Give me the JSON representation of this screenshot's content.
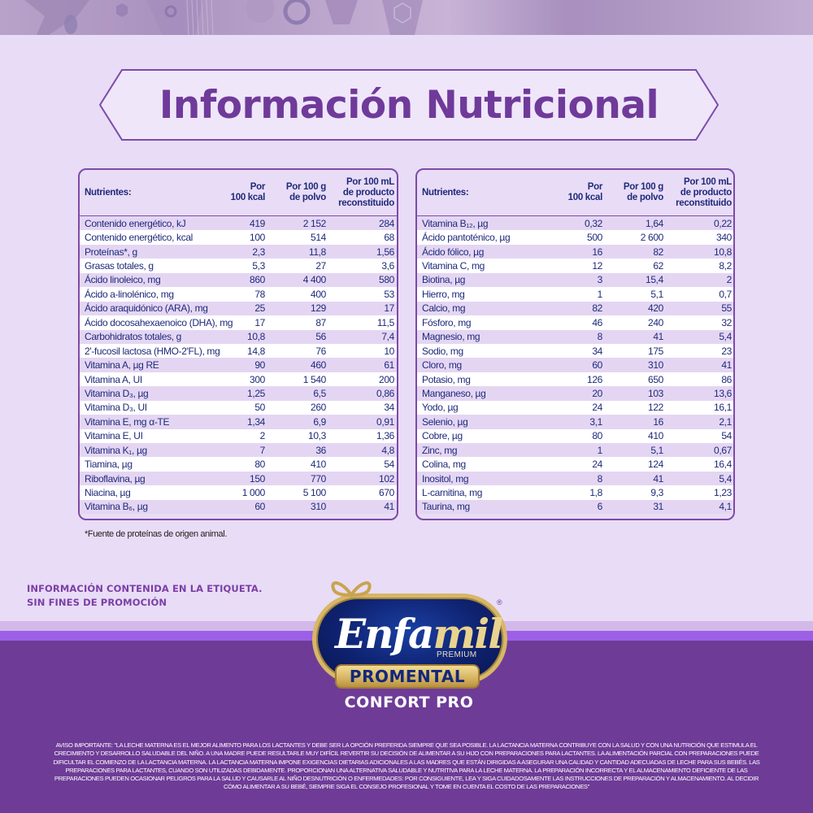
{
  "title": "Información Nutricional",
  "table_headers": {
    "nutrient": "Nutrientes:",
    "per_kcal_l1": "Por",
    "per_kcal_l2": "100 kcal",
    "per_powder_l1": "Por 100 g",
    "per_powder_l2": "de polvo",
    "per_ml_l1": "Por 100 mL",
    "per_ml_l2": "de producto",
    "per_ml_l3": "reconstituido"
  },
  "left_table": [
    {
      "name": "Contenido energético, kJ",
      "kcal": "419",
      "powder": "2 152",
      "ml": "284"
    },
    {
      "name": "Contenido energético, kcal",
      "kcal": "100",
      "powder": "514",
      "ml": "68"
    },
    {
      "name": "Proteínas*, g",
      "kcal": "2,3",
      "powder": "11,8",
      "ml": "1,56"
    },
    {
      "name": "Grasas totales, g",
      "kcal": "5,3",
      "powder": "27",
      "ml": "3,6"
    },
    {
      "name": "Ácido linoleico, mg",
      "kcal": "860",
      "powder": "4 400",
      "ml": "580"
    },
    {
      "name": "Ácido a-linolénico, mg",
      "kcal": "78",
      "powder": "400",
      "ml": "53"
    },
    {
      "name": "Ácido araquidónico (ARA), mg",
      "kcal": "25",
      "powder": "129",
      "ml": "17"
    },
    {
      "name": "Ácido docosahexaenoico (DHA), mg",
      "kcal": "17",
      "powder": "87",
      "ml": "11,5"
    },
    {
      "name": "Carbohidratos totales, g",
      "kcal": "10,8",
      "powder": "56",
      "ml": "7,4"
    },
    {
      "name": "2'-fucosil lactosa (HMO-2'FL), mg",
      "kcal": "14,8",
      "powder": "76",
      "ml": "10"
    },
    {
      "name": "Vitamina A, µg RE",
      "kcal": "90",
      "powder": "460",
      "ml": "61"
    },
    {
      "name": "Vitamina A, UI",
      "kcal": "300",
      "powder": "1 540",
      "ml": "200"
    },
    {
      "name": "Vitamina D₃, µg",
      "kcal": "1,25",
      "powder": "6,5",
      "ml": "0,86"
    },
    {
      "name": "Vitamina D₃, UI",
      "kcal": "50",
      "powder": "260",
      "ml": "34"
    },
    {
      "name": "Vitamina E, mg α-TE",
      "kcal": "1,34",
      "powder": "6,9",
      "ml": "0,91"
    },
    {
      "name": "Vitamina E, UI",
      "kcal": "2",
      "powder": "10,3",
      "ml": "1,36"
    },
    {
      "name": "Vitamina K₁, µg",
      "kcal": "7",
      "powder": "36",
      "ml": "4,8"
    },
    {
      "name": "Tiamina, µg",
      "kcal": "80",
      "powder": "410",
      "ml": "54"
    },
    {
      "name": "Riboflavina, µg",
      "kcal": "150",
      "powder": "770",
      "ml": "102"
    },
    {
      "name": "Niacina, µg",
      "kcal": "1 000",
      "powder": "5 100",
      "ml": "670"
    },
    {
      "name": "Vitamina B₆, µg",
      "kcal": "60",
      "powder": "310",
      "ml": "41"
    }
  ],
  "right_table": [
    {
      "name": "Vitamina B₁₂, µg",
      "kcal": "0,32",
      "powder": "1,64",
      "ml": "0,22"
    },
    {
      "name": "Ácido pantoténico, µg",
      "kcal": "500",
      "powder": "2 600",
      "ml": "340"
    },
    {
      "name": "Ácido fólico, µg",
      "kcal": "16",
      "powder": "82",
      "ml": "10,8"
    },
    {
      "name": "Vitamina C, mg",
      "kcal": "12",
      "powder": "62",
      "ml": "8,2"
    },
    {
      "name": "Biotina, µg",
      "kcal": "3",
      "powder": "15,4",
      "ml": "2"
    },
    {
      "name": "Hierro, mg",
      "kcal": "1",
      "powder": "5,1",
      "ml": "0,7"
    },
    {
      "name": "Calcio, mg",
      "kcal": "82",
      "powder": "420",
      "ml": "55"
    },
    {
      "name": "Fósforo, mg",
      "kcal": "46",
      "powder": "240",
      "ml": "32"
    },
    {
      "name": "Magnesio, mg",
      "kcal": "8",
      "powder": "41",
      "ml": "5,4"
    },
    {
      "name": "Sodio, mg",
      "kcal": "34",
      "powder": "175",
      "ml": "23"
    },
    {
      "name": "Cloro, mg",
      "kcal": "60",
      "powder": "310",
      "ml": "41"
    },
    {
      "name": "Potasio, mg",
      "kcal": "126",
      "powder": "650",
      "ml": "86"
    },
    {
      "name": "Manganeso, µg",
      "kcal": "20",
      "powder": "103",
      "ml": "13,6"
    },
    {
      "name": "Yodo, µg",
      "kcal": "24",
      "powder": "122",
      "ml": "16,1"
    },
    {
      "name": "Selenio, µg",
      "kcal": "3,1",
      "powder": "16",
      "ml": "2,1"
    },
    {
      "name": "Cobre, µg",
      "kcal": "80",
      "powder": "410",
      "ml": "54"
    },
    {
      "name": "Zinc, mg",
      "kcal": "1",
      "powder": "5,1",
      "ml": "0,67"
    },
    {
      "name": "Colina, mg",
      "kcal": "24",
      "powder": "124",
      "ml": "16,4"
    },
    {
      "name": "Inositol, mg",
      "kcal": "8",
      "powder": "41",
      "ml": "5,4"
    },
    {
      "name": "L-carnitina, mg",
      "kcal": "1,8",
      "powder": "9,3",
      "ml": "1,23"
    },
    {
      "name": "Taurina, mg",
      "kcal": "6",
      "powder": "31",
      "ml": "4,1"
    }
  ],
  "footnote": "*Fuente de proteínas de origen animal.",
  "promo_disclaimer": {
    "line1": "INFORMACIÓN CONTENIDA EN LA ETIQUETA.",
    "line2": "SIN FINES DE PROMOCIÓN"
  },
  "logo": {
    "brand_part1": "Enfa",
    "brand_part2": "mil",
    "registered": "®",
    "tier": "PREMIUM",
    "line": "PROMENTAL",
    "variant": "CONFORT PRO"
  },
  "legal_notice": "AVISO IMPORTANTE: \"LA LECHE MATERNA ES EL MEJOR ALIMENTO PARA LOS LACTANTES Y DEBE SER LA OPCIÓN PREFERIDA SIEMPRE QUE SEA POSIBLE. LA LACTANCIA MATERNA CONTRIBUYE CON LA SALUD Y CON UNA NUTRICIÓN QUE ESTIMULA EL CRECIMIENTO Y DESARROLLO SALUDABLE DEL NIÑO. A UNA MADRE PUEDE RESULTARLE MUY DIFÍCIL REVERTIR SU DECISIÓN DE ALIMENTAR A SU HIJO CON PREPARACIONES PARA LACTANTES. LA ALIMENTACIÓN PARCIAL CON PREPARACIONES PUEDE DIFICULTAR EL COMIENZO DE LA LACTANCIA MATERNA. LA LACTANCIA MATERNA IMPONE EXIGENCIAS DIETARIAS ADICIONALES A LAS MADRES QUE ESTÁN DIRIGIDAS A ASEGURAR UNA CALIDAD Y CANTIDAD ADECUADAS DE LECHE PARA SUS BEBÉS. LAS PREPARACIONES PARA LACTANTES, CUANDO SON UTILIZADAS DEBIDAMENTE. PROPORCIONAN UNA ALTERNATIVA SALUDABLE Y NUTRITIVA PARA LA LECHE MATERNA. LA PREPARACIÓN INCORRECTA Y EL ALMACENAMIENTO DEFICIENTE DE LAS PREPARACIONES PUEDEN OCASIONAR PELIGROS PARA LA SALUD Y CAUSARLE AL NIÑO DESNUTRICIÓN O ENFERMEDADES: POR CONSIGUIENTE, LEA Y SIGA CUIDADOSAMENTE LAS INSTRUCCIONES DE PREPARACIÓN Y ALMACENAMIENTO. AL DECIDIR CÓMO ALIMENTAR A SU BEBÉ, SIEMPRE SIGA EL CONSEJO PROFESIONAL Y TOME EN CUENTA EL COSTO DE LAS PREPARACIONES\"",
  "colors": {
    "background": "#e9dcf6",
    "title_purple": "#6f3a99",
    "table_text": "#1f2a7a",
    "table_border": "#7c4ba8",
    "footer_purple": "#6e3c97",
    "accent_violet": "#9c5fe6",
    "logo_navy": "#0f2270",
    "logo_gold": "#d7b766"
  }
}
